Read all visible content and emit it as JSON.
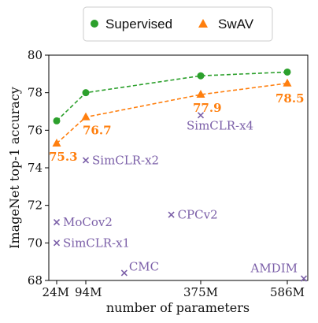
{
  "chart_data": {
    "type": "scatter",
    "xlabel": "number of parameters",
    "ylabel": "ImageNet top-1 accuracy",
    "x_tick_labels": [
      "24M",
      "94M",
      "375M",
      "586M"
    ],
    "x_ticks": [
      24,
      94,
      375,
      586
    ],
    "y_ticks": [
      68,
      70,
      72,
      74,
      76,
      78,
      80
    ],
    "xlim": [
      0,
      620
    ],
    "ylim": [
      68,
      80
    ],
    "grid": false,
    "legend_position": "top",
    "legend": [
      "Supervised",
      "SwAV"
    ],
    "series": [
      {
        "name": "Supervised",
        "color": "#2ca02c",
        "marker": "circle",
        "line": "dashed",
        "x": [
          24,
          94,
          375,
          586
        ],
        "y": [
          76.5,
          78.0,
          78.9,
          79.1
        ],
        "labels": []
      },
      {
        "name": "SwAV",
        "color": "#ff7f0e",
        "marker": "triangle",
        "line": "dashed",
        "x": [
          24,
          94,
          375,
          586
        ],
        "y": [
          75.3,
          76.7,
          77.9,
          78.5
        ],
        "labels": [
          "75.3",
          "76.7",
          "77.9",
          "78.5"
        ]
      }
    ],
    "points": [
      {
        "label": "MoCov2",
        "x": 24,
        "y": 71.1
      },
      {
        "label": "SimCLR-x1",
        "x": 24,
        "y": 70.0
      },
      {
        "label": "SimCLR-x2",
        "x": 94,
        "y": 74.4
      },
      {
        "label": "SimCLR-x4",
        "x": 375,
        "y": 76.8
      },
      {
        "label": "CPCv2",
        "x": 303,
        "y": 71.5
      },
      {
        "label": "CMC",
        "x": 188,
        "y": 68.4
      },
      {
        "label": "AMDIM",
        "x": 626,
        "y": 68.1
      }
    ],
    "point_color": "#7b5fa8"
  }
}
